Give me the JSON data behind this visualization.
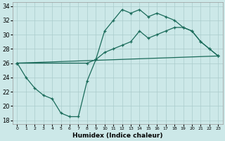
{
  "xlabel": "Humidex (Indice chaleur)",
  "background_color": "#cce8e8",
  "grid_color": "#aacccc",
  "line_color": "#1a6b5a",
  "xlim": [
    -0.5,
    23.5
  ],
  "ylim": [
    17.5,
    34.5
  ],
  "yticks": [
    18,
    20,
    22,
    24,
    26,
    28,
    30,
    32,
    34
  ],
  "xticks": [
    0,
    1,
    2,
    3,
    4,
    5,
    6,
    7,
    8,
    9,
    10,
    11,
    12,
    13,
    14,
    15,
    16,
    17,
    18,
    19,
    20,
    21,
    22,
    23
  ],
  "line1_x": [
    0,
    1,
    2,
    3,
    4,
    5,
    6,
    7,
    8,
    9,
    10,
    11,
    12,
    13,
    14,
    15,
    16,
    17,
    18,
    19,
    20,
    21,
    22,
    23
  ],
  "line1_y": [
    26,
    24,
    22.5,
    21.5,
    21,
    19,
    18.5,
    18.5,
    23.5,
    26.5,
    30.5,
    32,
    33.5,
    33,
    33.5,
    32.5,
    33,
    32.5,
    32,
    31,
    30.5,
    29,
    28,
    27
  ],
  "line2_x": [
    0,
    8,
    9,
    10,
    11,
    12,
    13,
    14,
    15,
    16,
    17,
    18,
    19,
    20,
    21,
    22,
    23
  ],
  "line2_y": [
    26,
    26,
    26.5,
    27.5,
    28,
    28.5,
    29,
    30.5,
    29.5,
    30,
    30.5,
    31,
    31,
    30.5,
    29,
    28,
    27
  ],
  "line3_x": [
    0,
    23
  ],
  "line3_y": [
    26,
    27
  ]
}
